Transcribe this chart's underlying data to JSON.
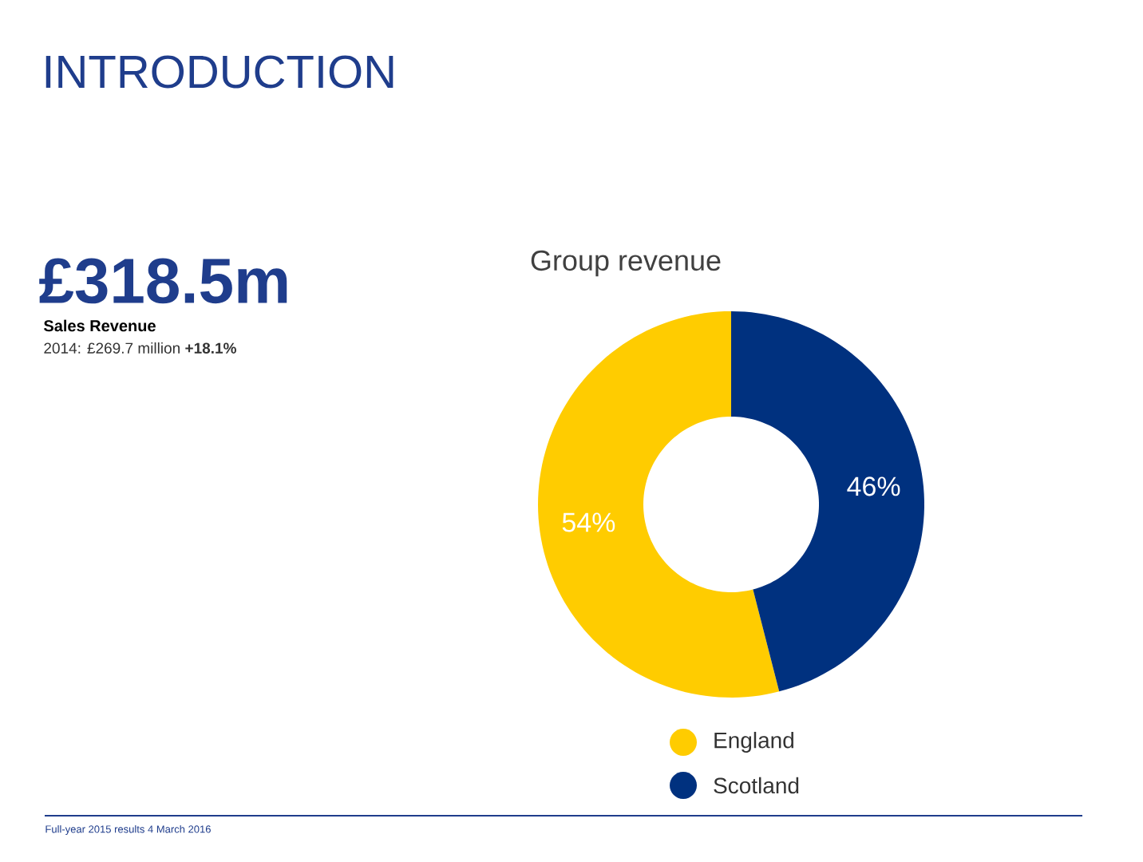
{
  "chart_data": {
    "type": "donut",
    "title": "Group revenue",
    "categories": [
      "England",
      "Scotland"
    ],
    "values": [
      54,
      46
    ],
    "colors": [
      "#ffcc00",
      "#00317f"
    ],
    "value_labels": [
      "54%",
      "46%"
    ],
    "legend": "bottom",
    "annotations": [
      "INTRODUCTION",
      "£318.5m",
      "Sales Revenue",
      "2014: £269.7 million **+18.1%**",
      "Full-year 2015 results 4 March 2016"
    ]
  }
}
